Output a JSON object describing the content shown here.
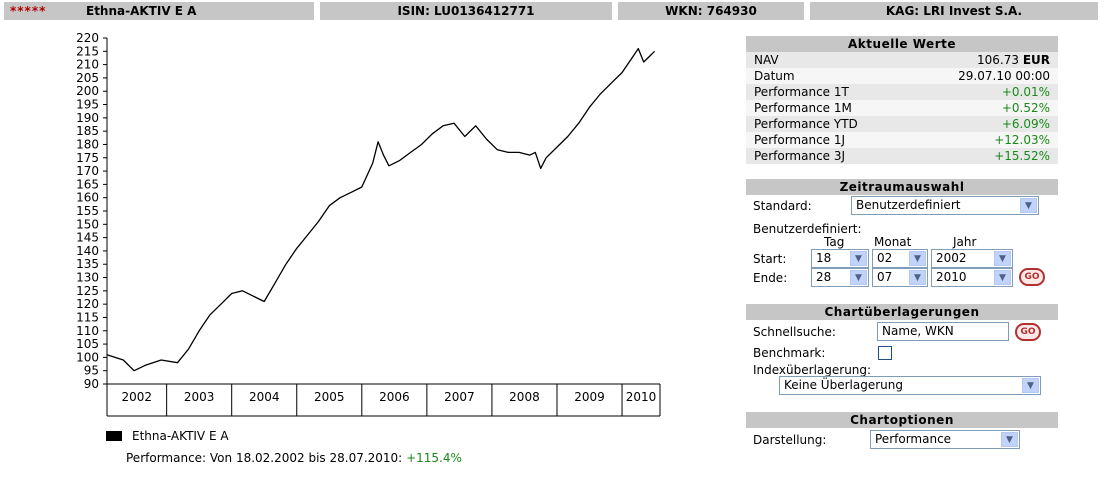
{
  "header": {
    "stars": "*****",
    "fund_name": "Ethna-AKTIV E A",
    "isin": "ISIN: LU0136412771",
    "wkn": "WKN: 764930",
    "kag": "KAG: LRI Invest S.A."
  },
  "chart_data": {
    "type": "line",
    "title": "",
    "xlabel": "",
    "ylabel": "",
    "ylim": [
      90,
      220
    ],
    "y_ticks": [
      "90",
      "95",
      "100",
      "105",
      "110",
      "115",
      "120",
      "125",
      "130",
      "135",
      "140",
      "145",
      "150",
      "155",
      "160",
      "165",
      "170",
      "175",
      "180",
      "185",
      "190",
      "195",
      "200",
      "205",
      "210",
      "215",
      "220"
    ],
    "x_ticks": [
      "2002",
      "2003",
      "2004",
      "2005",
      "2006",
      "2007",
      "2008",
      "2009",
      "2010"
    ],
    "xlim": [
      "2002-02",
      "2010-08"
    ],
    "series": [
      {
        "name": "Ethna-AKTIV E A",
        "color": "#000000",
        "x": [
          "2002-02",
          "2002-05",
          "2002-07",
          "2002-09",
          "2002-12",
          "2003-03",
          "2003-05",
          "2003-07",
          "2003-09",
          "2003-11",
          "2004-01",
          "2004-03",
          "2004-05",
          "2004-07",
          "2004-09",
          "2004-11",
          "2005-01",
          "2005-03",
          "2005-05",
          "2005-07",
          "2005-09",
          "2005-11",
          "2006-01",
          "2006-03",
          "2006-04",
          "2006-05",
          "2006-06",
          "2006-08",
          "2006-10",
          "2006-12",
          "2007-02",
          "2007-04",
          "2007-06",
          "2007-08",
          "2007-10",
          "2007-12",
          "2008-02",
          "2008-04",
          "2008-06",
          "2008-08",
          "2008-09",
          "2008-10",
          "2008-11",
          "2009-01",
          "2009-03",
          "2009-05",
          "2009-07",
          "2009-09",
          "2009-11",
          "2010-01",
          "2010-03",
          "2010-04",
          "2010-05",
          "2010-06",
          "2010-07"
        ],
        "values": [
          101,
          99,
          95,
          97,
          99,
          98,
          103,
          110,
          116,
          120,
          124,
          125,
          123,
          121,
          128,
          135,
          141,
          146,
          151,
          157,
          160,
          162,
          164,
          173,
          181,
          176,
          172,
          174,
          177,
          180,
          184,
          187,
          188,
          183,
          187,
          182,
          178,
          177,
          177,
          176,
          177,
          171,
          175,
          179,
          183,
          188,
          194,
          199,
          203,
          207,
          213,
          216,
          211,
          213,
          215
        ]
      }
    ]
  },
  "legend": {
    "label": "Ethna-AKTIV E A",
    "color": "#000000"
  },
  "performance": {
    "text": "Performance: Von 18.02.2002 bis 28.07.2010:",
    "value": "+115.4%"
  },
  "aktuelle_werte": {
    "title": "Aktuelle Werte",
    "rows": [
      {
        "label": "NAV",
        "value": "106.73",
        "unit": "EUR"
      },
      {
        "label": "Datum",
        "value": "29.07.10 00:00"
      },
      {
        "label": "Performance 1T",
        "value": "+0.01%"
      },
      {
        "label": "Performance 1M",
        "value": "+0.52%"
      },
      {
        "label": "Performance YTD",
        "value": "+6.09%"
      },
      {
        "label": "Performance 1J",
        "value": "+12.03%"
      },
      {
        "label": "Performance 3J",
        "value": "+15.52%"
      }
    ]
  },
  "zeitraum": {
    "title": "Zeitraumauswahl",
    "standard_label": "Standard:",
    "standard_value": "Benutzerdefiniert",
    "custom_label": "Benutzerdefiniert:",
    "col_tag": "Tag",
    "col_monat": "Monat",
    "col_jahr": "Jahr",
    "start_label": "Start:",
    "start_tag": "18",
    "start_monat": "02",
    "start_jahr": "2002",
    "ende_label": "Ende:",
    "ende_tag": "28",
    "ende_monat": "07",
    "ende_jahr": "2010",
    "go": "GO"
  },
  "overlay": {
    "title": "Chartüberlagerungen",
    "search_label": "Schnellsuche:",
    "search_placeholder": "Name, WKN",
    "go": "GO",
    "benchmark_label": "Benchmark:",
    "index_label": "Indexüberlagerung:",
    "index_value": "Keine Überlagerung"
  },
  "chartoptionen": {
    "title": "Chartoptionen",
    "display_label": "Darstellung:",
    "display_value": "Performance"
  }
}
